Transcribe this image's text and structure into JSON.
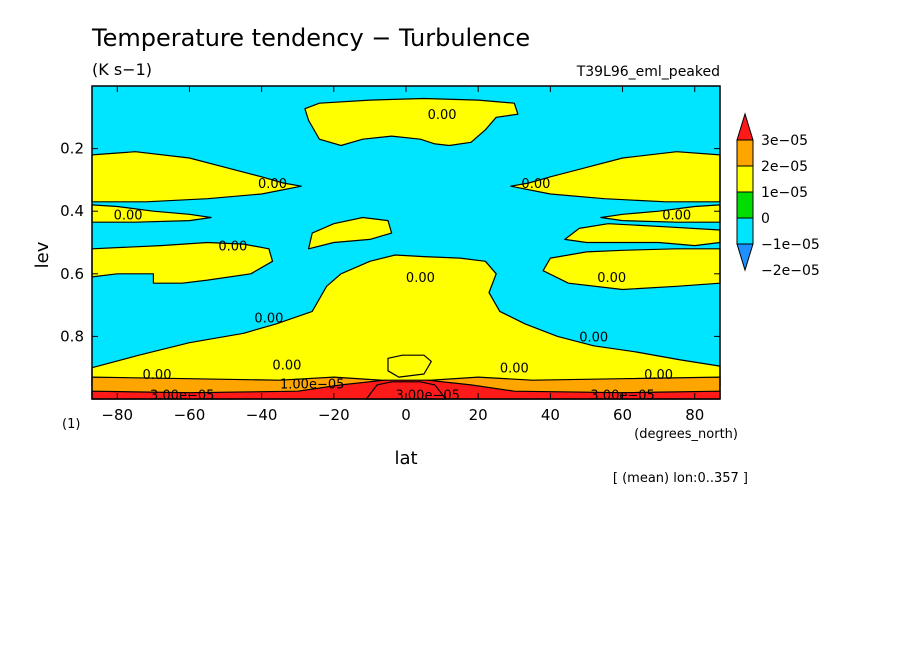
{
  "chart_data": {
    "type": "heatmap",
    "title": "Temperature tendency − Turbulence",
    "units": "(K s−1)",
    "run_label": "T39L96_eml_peaked",
    "xlabel": "lat",
    "x_units": "(degrees_north)",
    "ylabel": "lev",
    "y_units": "(1)",
    "footnote": "[ (mean) lon:0..357 ]",
    "xlim": [
      -87,
      87
    ],
    "ylim": [
      1.0,
      0.0
    ],
    "x_ticks": [
      -80,
      -60,
      -40,
      -20,
      0,
      20,
      40,
      60,
      80
    ],
    "x_tick_labels": [
      "−80",
      "−60",
      "−40",
      "−20",
      "0",
      "20",
      "40",
      "60",
      "80"
    ],
    "y_ticks": [
      0.2,
      0.4,
      0.6,
      0.8
    ],
    "y_tick_labels": [
      "0.2",
      "0.4",
      "0.6",
      "0.8"
    ],
    "levels": [
      -3e-05,
      -2e-05,
      -1e-05,
      0,
      1e-05,
      2e-05,
      3e-05
    ],
    "colorbar": {
      "labels": [
        "3e−05",
        "2e−05",
        "1e−05",
        "0",
        "−1e−05",
        "−2e−05"
      ],
      "colors": [
        "#1e90ff",
        "#00e5ff",
        "#00dd00",
        "#ffff00",
        "#ffa500",
        "#ff1a1a"
      ]
    },
    "contour_labels": [
      {
        "text": "0.00",
        "lat": 10,
        "lev": 0.09
      },
      {
        "text": "0.00",
        "lat": -37,
        "lev": 0.31
      },
      {
        "text": "0.00",
        "lat": 36,
        "lev": 0.31
      },
      {
        "text": "0.00",
        "lat": -77,
        "lev": 0.41
      },
      {
        "text": "0.00",
        "lat": 75,
        "lev": 0.41
      },
      {
        "text": "0.00",
        "lat": -48,
        "lev": 0.51
      },
      {
        "text": "0.00",
        "lat": 4,
        "lev": 0.61
      },
      {
        "text": "0.00",
        "lat": 57,
        "lev": 0.61
      },
      {
        "text": "0.00",
        "lat": -38,
        "lev": 0.74
      },
      {
        "text": "0.00",
        "lat": 52,
        "lev": 0.8
      },
      {
        "text": "0.00",
        "lat": -33,
        "lev": 0.89
      },
      {
        "text": "0.00",
        "lat": 30,
        "lev": 0.9
      },
      {
        "text": "0.00",
        "lat": -69,
        "lev": 0.92
      },
      {
        "text": "0.00",
        "lat": 70,
        "lev": 0.92
      },
      {
        "text": "1.00e−05",
        "lat": -26,
        "lev": 0.95
      },
      {
        "text": "3.00e−05",
        "lat": -62,
        "lev": 0.985
      },
      {
        "text": "3.00e−05",
        "lat": 6,
        "lev": 0.985
      },
      {
        "text": "3.00e−05",
        "lat": 60,
        "lev": 0.985
      }
    ],
    "regions": [
      {
        "name": "upper-center",
        "value": 5e-06,
        "level_band": [
          0,
          1e-05
        ],
        "points": [
          [
            -28,
            0.0725
          ],
          [
            -24,
            0.055
          ],
          [
            -10,
            0.045
          ],
          [
            5,
            0.04
          ],
          [
            20,
            0.045
          ],
          [
            30,
            0.055
          ],
          [
            31,
            0.09
          ],
          [
            25,
            0.1
          ],
          [
            22,
            0.14
          ],
          [
            18,
            0.18
          ],
          [
            12,
            0.19
          ],
          [
            8,
            0.185
          ],
          [
            4,
            0.17
          ],
          [
            -4,
            0.16
          ],
          [
            -12,
            0.17
          ],
          [
            -18,
            0.19
          ],
          [
            -24,
            0.17
          ],
          [
            -27,
            0.11
          ]
        ]
      },
      {
        "name": "upper-left",
        "value": 5e-06,
        "level_band": [
          0,
          1e-05
        ],
        "points": [
          [
            -87,
            0.22
          ],
          [
            -75,
            0.21
          ],
          [
            -60,
            0.23
          ],
          [
            -50,
            0.26
          ],
          [
            -40,
            0.29
          ],
          [
            -34,
            0.31
          ],
          [
            -29,
            0.32
          ],
          [
            -40,
            0.345
          ],
          [
            -55,
            0.36
          ],
          [
            -72,
            0.37
          ],
          [
            -87,
            0.37
          ]
        ]
      },
      {
        "name": "upper-right",
        "value": 5e-06,
        "level_band": [
          0,
          1e-05
        ],
        "points": [
          [
            87,
            0.22
          ],
          [
            75,
            0.21
          ],
          [
            60,
            0.23
          ],
          [
            50,
            0.26
          ],
          [
            40,
            0.29
          ],
          [
            34,
            0.31
          ],
          [
            29,
            0.32
          ],
          [
            40,
            0.345
          ],
          [
            55,
            0.36
          ],
          [
            72,
            0.37
          ],
          [
            87,
            0.37
          ]
        ]
      },
      {
        "name": "tongue-left",
        "value": 5e-06,
        "level_band": [
          0,
          1e-05
        ],
        "points": [
          [
            -87,
            0.38
          ],
          [
            -80,
            0.385
          ],
          [
            -70,
            0.4
          ],
          [
            -60,
            0.41
          ],
          [
            -54,
            0.42
          ],
          [
            -60,
            0.43
          ],
          [
            -75,
            0.435
          ],
          [
            -87,
            0.435
          ]
        ]
      },
      {
        "name": "tongue-right",
        "value": 5e-06,
        "level_band": [
          0,
          1e-05
        ],
        "points": [
          [
            87,
            0.38
          ],
          [
            80,
            0.385
          ],
          [
            70,
            0.4
          ],
          [
            60,
            0.41
          ],
          [
            54,
            0.42
          ],
          [
            60,
            0.43
          ],
          [
            75,
            0.435
          ],
          [
            87,
            0.435
          ]
        ]
      },
      {
        "name": "blob-left-mid",
        "value": 5e-06,
        "level_band": [
          0,
          1e-05
        ],
        "points": [
          [
            -27,
            0.52
          ],
          [
            -26,
            0.47
          ],
          [
            -20,
            0.44
          ],
          [
            -12,
            0.42
          ],
          [
            -5,
            0.43
          ],
          [
            -4,
            0.47
          ],
          [
            -10,
            0.49
          ],
          [
            -20,
            0.5
          ]
        ]
      },
      {
        "name": "blob-right-mid",
        "value": 5e-06,
        "level_band": [
          0,
          1e-05
        ],
        "points": [
          [
            44,
            0.49
          ],
          [
            48,
            0.455
          ],
          [
            56,
            0.44
          ],
          [
            72,
            0.45
          ],
          [
            87,
            0.46
          ],
          [
            87,
            0.5
          ],
          [
            80,
            0.51
          ],
          [
            70,
            0.5
          ],
          [
            60,
            0.5
          ],
          [
            50,
            0.5
          ]
        ]
      },
      {
        "name": "south-mid-band",
        "value": 5e-06,
        "level_band": [
          0,
          1e-05
        ],
        "points": [
          [
            -87,
            0.52
          ],
          [
            -68,
            0.51
          ],
          [
            -55,
            0.5
          ],
          [
            -45,
            0.505
          ],
          [
            -38,
            0.52
          ],
          [
            -37,
            0.56
          ],
          [
            -43,
            0.6
          ],
          [
            -55,
            0.62
          ],
          [
            -62,
            0.63
          ],
          [
            -70,
            0.63
          ],
          [
            -70,
            0.6
          ],
          [
            -80,
            0.6
          ],
          [
            -87,
            0.61
          ]
        ]
      },
      {
        "name": "north-mid-band",
        "value": 5e-06,
        "level_band": [
          0,
          1e-05
        ],
        "points": [
          [
            87,
            0.52
          ],
          [
            75,
            0.52
          ],
          [
            60,
            0.525
          ],
          [
            50,
            0.53
          ],
          [
            40,
            0.55
          ],
          [
            38,
            0.59
          ],
          [
            45,
            0.63
          ],
          [
            60,
            0.65
          ],
          [
            75,
            0.64
          ],
          [
            87,
            0.63
          ]
        ]
      },
      {
        "name": "central-arch",
        "value": 5e-06,
        "level_band": [
          0,
          1e-05
        ],
        "points": [
          [
            -87,
            0.9
          ],
          [
            -74,
            0.86
          ],
          [
            -60,
            0.82
          ],
          [
            -45,
            0.79
          ],
          [
            -36,
            0.76
          ],
          [
            -26,
            0.72
          ],
          [
            -22,
            0.64
          ],
          [
            -18,
            0.6
          ],
          [
            -10,
            0.56
          ],
          [
            -3,
            0.54
          ],
          [
            5,
            0.545
          ],
          [
            15,
            0.55
          ],
          [
            22,
            0.56
          ],
          [
            25,
            0.6
          ],
          [
            23,
            0.66
          ],
          [
            26,
            0.72
          ],
          [
            33,
            0.76
          ],
          [
            42,
            0.8
          ],
          [
            52,
            0.83
          ],
          [
            64,
            0.85
          ],
          [
            76,
            0.875
          ],
          [
            87,
            0.895
          ],
          [
            87,
            0.96
          ],
          [
            -87,
            0.96
          ]
        ]
      },
      {
        "name": "small-central",
        "value": 5e-06,
        "level_band": [
          0,
          1e-05
        ],
        "points": [
          [
            -5,
            0.87
          ],
          [
            -1,
            0.86
          ],
          [
            5,
            0.86
          ],
          [
            7,
            0.88
          ],
          [
            5,
            0.92
          ],
          [
            -2,
            0.93
          ],
          [
            -5,
            0.91
          ]
        ]
      },
      {
        "name": "bottom-yellow",
        "value": 1.5e-05,
        "level_band": [
          1e-05,
          2e-05
        ],
        "points": [
          [
            -87,
            0.93
          ],
          [
            -60,
            0.935
          ],
          [
            -35,
            0.94
          ],
          [
            -20,
            0.93
          ],
          [
            0,
            0.945
          ],
          [
            20,
            0.93
          ],
          [
            35,
            0.94
          ],
          [
            60,
            0.935
          ],
          [
            87,
            0.93
          ],
          [
            87,
            1.0
          ],
          [
            -87,
            1.0
          ]
        ]
      },
      {
        "name": "bottom-orange",
        "value": 2.5e-05,
        "level_band": [
          2e-05,
          3e-05
        ],
        "points": [
          [
            -87,
            0.975
          ],
          [
            -60,
            0.98
          ],
          [
            -30,
            0.975
          ],
          [
            -18,
            0.955
          ],
          [
            -6,
            0.94
          ],
          [
            6,
            0.94
          ],
          [
            18,
            0.955
          ],
          [
            30,
            0.975
          ],
          [
            60,
            0.98
          ],
          [
            87,
            0.975
          ],
          [
            87,
            1.0
          ],
          [
            -87,
            1.0
          ]
        ]
      },
      {
        "name": "bottom-red",
        "value": 3.5e-05,
        "level_band": [
          3e-05,
          null
        ],
        "points": [
          [
            -11,
            1.0
          ],
          [
            -8,
            0.955
          ],
          [
            -4,
            0.945
          ],
          [
            4,
            0.945
          ],
          [
            8,
            0.955
          ],
          [
            11,
            1.0
          ]
        ]
      }
    ]
  }
}
